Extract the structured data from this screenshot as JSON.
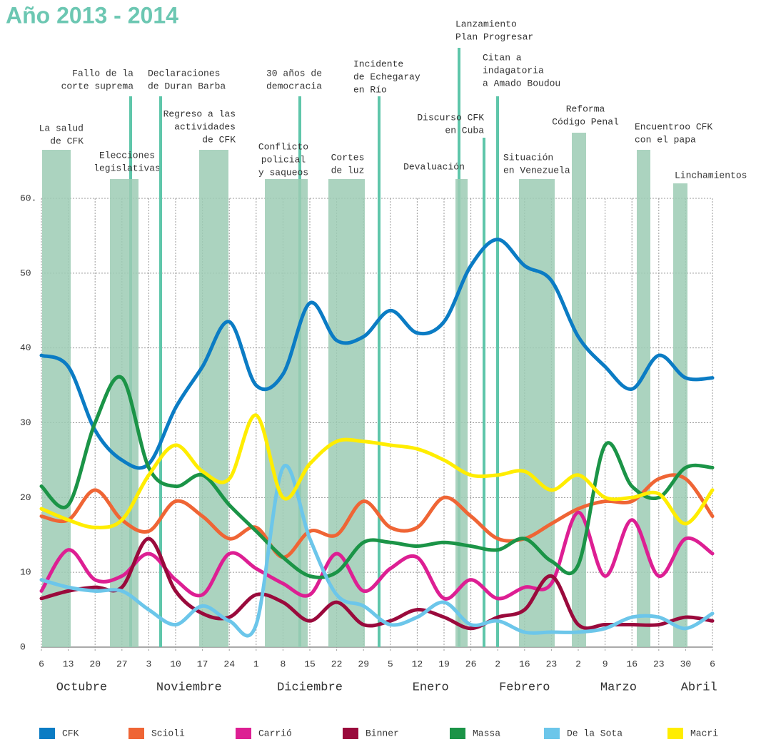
{
  "chart_data": {
    "type": "line",
    "title": "Año 2013 - 2014",
    "categories": [
      "6",
      "13",
      "20",
      "27",
      "3",
      "10",
      "17",
      "24",
      "1",
      "8",
      "15",
      "22",
      "29",
      "5",
      "12",
      "19",
      "26",
      "2",
      "16",
      "23",
      "2",
      "9",
      "16",
      "23",
      "30",
      "6"
    ],
    "months": [
      "Octubre",
      "Noviembre",
      "Diciembre",
      "Enero",
      "Febrero",
      "Marzo",
      "Abril"
    ],
    "ylim": [
      0,
      60
    ],
    "yticks": [
      0,
      10,
      20,
      30,
      40,
      50,
      {
        "value": 60,
        "label": "60."
      }
    ],
    "grid": true,
    "series": [
      {
        "name": "CFK",
        "color": "#0b7cc4",
        "values": [
          39,
          37.5,
          29,
          25,
          24.5,
          32,
          37.5,
          43.5,
          35,
          36.5,
          46,
          41,
          41.5,
          45,
          42,
          43.5,
          51,
          54.5,
          51,
          49,
          41.5,
          37.5,
          34.5,
          39,
          36,
          36
        ]
      },
      {
        "name": "Scioli",
        "color": "#ef6535",
        "values": [
          17.5,
          17,
          21,
          17,
          15.5,
          19.5,
          17.5,
          14.5,
          16,
          12,
          15.5,
          15,
          19.5,
          16,
          16,
          20,
          17.5,
          14.5,
          14.5,
          16.5,
          18.5,
          19.5,
          19.5,
          22.5,
          22.5,
          17.5
        ]
      },
      {
        "name": "Carrió",
        "color": "#dd1f93",
        "values": [
          7.5,
          13,
          9,
          9.5,
          12.5,
          9,
          7,
          12.5,
          10.5,
          8.5,
          7,
          12.5,
          7.5,
          10.5,
          12,
          6.5,
          9,
          6.5,
          8,
          8.5,
          18,
          9.5,
          17,
          9.5,
          14.5,
          12.5
        ]
      },
      {
        "name": "Binner",
        "color": "#9a0a3c",
        "values": [
          6.5,
          7.5,
          8,
          8,
          14.5,
          7.5,
          4.5,
          4,
          7,
          6,
          3.5,
          6,
          3,
          3.5,
          5,
          4,
          2.5,
          4,
          5,
          9.5,
          3,
          3,
          3,
          3,
          4,
          3.5
        ]
      },
      {
        "name": "Massa",
        "color": "#1b9447",
        "values": [
          21.5,
          19,
          30,
          36,
          24,
          21.5,
          23,
          19,
          15.5,
          12,
          9.5,
          10,
          14,
          14,
          13.5,
          14,
          13.5,
          13,
          14.5,
          11.5,
          11,
          27,
          21.5,
          20,
          24,
          24
        ]
      },
      {
        "name": "De la Sota",
        "color": "#6cc6ea",
        "values": [
          9,
          8,
          7.5,
          7.5,
          5,
          3,
          5.5,
          3.5,
          3,
          24,
          14.5,
          7,
          5.5,
          3,
          4,
          6,
          3,
          3.5,
          2,
          2,
          2,
          2.5,
          4,
          4,
          2.5,
          4.5
        ]
      },
      {
        "name": "Macri",
        "color": "#ffed00",
        "values": [
          18.5,
          17,
          16,
          17,
          23,
          27,
          23.5,
          22.5,
          31,
          20,
          24.5,
          27.5,
          27.5,
          27,
          26.5,
          25,
          23,
          23,
          23.5,
          21,
          23,
          20,
          20,
          20.5,
          16.5,
          21
        ]
      }
    ],
    "events": [
      {
        "lines": [
          "La salud",
          "de CFK"
        ]
      },
      {
        "lines": [
          "Fallo de la",
          "corte suprema"
        ]
      },
      {
        "lines": [
          "Elecciones",
          "legislativas"
        ]
      },
      {
        "lines": [
          "Declaraciones",
          "de Duran Barba"
        ]
      },
      {
        "lines": [
          "Regreso a las",
          "actividades",
          "de CFK"
        ]
      },
      {
        "lines": [
          "30 años de",
          "democracia"
        ]
      },
      {
        "lines": [
          "Conflicto",
          "policial",
          "y saqueos"
        ]
      },
      {
        "lines": [
          "Cortes",
          "de luz"
        ]
      },
      {
        "lines": [
          "Incidente",
          "de Echegaray",
          "en Río"
        ]
      },
      {
        "lines": [
          "Lanzamiento",
          "Plan Progresar"
        ]
      },
      {
        "lines": [
          "Discurso CFK",
          "en Cuba"
        ]
      },
      {
        "lines": [
          "Devaluación"
        ]
      },
      {
        "lines": [
          "Citan a",
          "indagatoria",
          "a Amado Boudou"
        ]
      },
      {
        "lines": [
          "Situación",
          "en Venezuela"
        ]
      },
      {
        "lines": [
          "Reforma",
          "Código Penal"
        ]
      },
      {
        "lines": [
          "Encuentroo CFK",
          "con el papa"
        ]
      },
      {
        "lines": [
          "Linchamientos"
        ]
      }
    ]
  }
}
